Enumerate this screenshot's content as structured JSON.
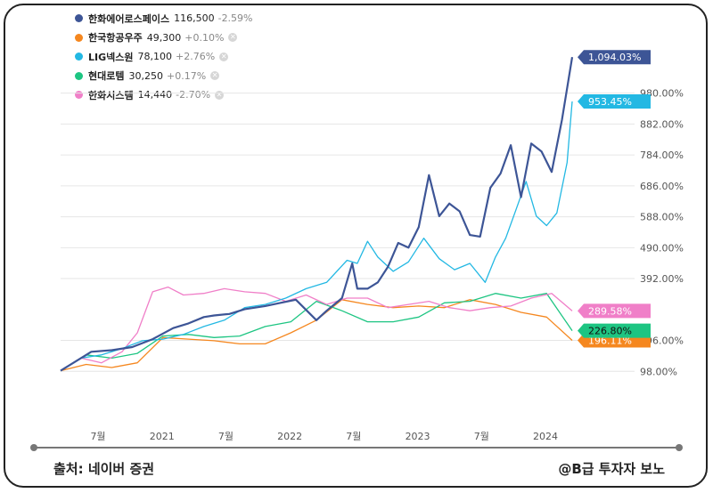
{
  "legend": [
    {
      "name": "한화에어로스페이스",
      "price": "116,500",
      "change": "-2.59%",
      "color": "#3d5596",
      "closable": false
    },
    {
      "name": "한국항공우주",
      "price": "49,300",
      "change": "+0.10%",
      "color": "#f5871f",
      "closable": true
    },
    {
      "name": "LIG넥스원",
      "price": "78,100",
      "change": "+2.76%",
      "color": "#23b8e3",
      "closable": true
    },
    {
      "name": "현대로템",
      "price": "30,250",
      "change": "+0.17%",
      "color": "#1dc582",
      "closable": true
    },
    {
      "name": "한화시스템",
      "price": "14,440",
      "change": "-2.70%",
      "color": "#f07fc8",
      "closable": true
    }
  ],
  "footer": {
    "source": "출처: 네이버 증권",
    "credit": "@B급 투자자 보노"
  },
  "chart_data": {
    "type": "line",
    "x_ticks": [
      "7월",
      "2021",
      "7월",
      "2022",
      "7월",
      "2023",
      "7월",
      "2024"
    ],
    "y_ticks": [
      "98.00%",
      "196.00%",
      "392.00%",
      "490.00%",
      "588.00%",
      "686.00%",
      "784.00%",
      "882.00%",
      "980.00%"
    ],
    "ylim": [
      0,
      1120
    ],
    "xlim": [
      0,
      1
    ],
    "grid": true,
    "x_grid": false,
    "end_labels": [
      "1,094.03%",
      "953.45%",
      "289.58%",
      "226.80%",
      "196.11%"
    ],
    "series": [
      {
        "name": "한화에어로스페이스",
        "color": "#3d5596",
        "end_label": "1,094.03%",
        "x": [
          0,
          0.03,
          0.06,
          0.1,
          0.14,
          0.18,
          0.22,
          0.25,
          0.28,
          0.3,
          0.33,
          0.36,
          0.4,
          0.43,
          0.46,
          0.5,
          0.52,
          0.55,
          0.57,
          0.58,
          0.6,
          0.62,
          0.64,
          0.66,
          0.68,
          0.7,
          0.72,
          0.74,
          0.76,
          0.78,
          0.8,
          0.82,
          0.84,
          0.86,
          0.88,
          0.9,
          0.92,
          0.94,
          0.96,
          0.98,
          1.0
        ],
        "y": [
          100,
          130,
          160,
          165,
          175,
          200,
          235,
          250,
          270,
          275,
          280,
          295,
          305,
          315,
          325,
          260,
          290,
          330,
          440,
          360,
          360,
          380,
          430,
          505,
          490,
          555,
          720,
          590,
          630,
          605,
          530,
          525,
          680,
          725,
          815,
          650,
          820,
          795,
          730,
          895,
          1094.03
        ]
      },
      {
        "name": "한국항공우주",
        "color": "#f5871f",
        "end_label": "196.11%",
        "x": [
          0,
          0.05,
          0.1,
          0.15,
          0.2,
          0.25,
          0.3,
          0.35,
          0.4,
          0.45,
          0.5,
          0.55,
          0.6,
          0.65,
          0.7,
          0.75,
          0.8,
          0.85,
          0.9,
          0.95,
          1.0
        ],
        "y": [
          100,
          120,
          110,
          125,
          205,
          200,
          195,
          185,
          185,
          220,
          260,
          325,
          310,
          300,
          305,
          300,
          325,
          310,
          285,
          270,
          196.11
        ]
      },
      {
        "name": "LIG넥스원",
        "color": "#23b8e3",
        "end_label": "953.45%",
        "x": [
          0,
          0.04,
          0.08,
          0.12,
          0.16,
          0.2,
          0.24,
          0.28,
          0.32,
          0.36,
          0.4,
          0.44,
          0.48,
          0.52,
          0.56,
          0.58,
          0.6,
          0.62,
          0.65,
          0.68,
          0.71,
          0.74,
          0.77,
          0.8,
          0.83,
          0.85,
          0.87,
          0.89,
          0.91,
          0.93,
          0.95,
          0.97,
          0.99,
          1.0
        ],
        "y": [
          100,
          140,
          150,
          170,
          195,
          200,
          215,
          240,
          260,
          300,
          310,
          330,
          360,
          380,
          450,
          440,
          510,
          460,
          415,
          445,
          520,
          455,
          420,
          440,
          380,
          460,
          520,
          610,
          700,
          590,
          560,
          600,
          760,
          953.45
        ]
      },
      {
        "name": "현대로템",
        "color": "#1dc582",
        "end_label": "226.80%",
        "x": [
          0,
          0.05,
          0.1,
          0.15,
          0.2,
          0.25,
          0.3,
          0.35,
          0.4,
          0.45,
          0.5,
          0.55,
          0.6,
          0.65,
          0.7,
          0.75,
          0.8,
          0.85,
          0.9,
          0.95,
          1.0
        ],
        "y": [
          100,
          150,
          140,
          155,
          210,
          215,
          205,
          210,
          240,
          255,
          320,
          290,
          255,
          255,
          270,
          315,
          320,
          345,
          330,
          345,
          226.8
        ]
      },
      {
        "name": "한화시스템",
        "color": "#f07fc8",
        "end_label": "289.58%",
        "x": [
          0,
          0.04,
          0.08,
          0.12,
          0.15,
          0.18,
          0.21,
          0.24,
          0.28,
          0.32,
          0.36,
          0.4,
          0.44,
          0.48,
          0.52,
          0.56,
          0.6,
          0.64,
          0.68,
          0.72,
          0.76,
          0.8,
          0.84,
          0.88,
          0.92,
          0.96,
          1.0
        ],
        "y": [
          100,
          140,
          125,
          160,
          220,
          350,
          365,
          340,
          345,
          360,
          350,
          345,
          320,
          340,
          310,
          330,
          330,
          300,
          310,
          320,
          300,
          290,
          300,
          305,
          330,
          345,
          289.58
        ]
      }
    ]
  }
}
